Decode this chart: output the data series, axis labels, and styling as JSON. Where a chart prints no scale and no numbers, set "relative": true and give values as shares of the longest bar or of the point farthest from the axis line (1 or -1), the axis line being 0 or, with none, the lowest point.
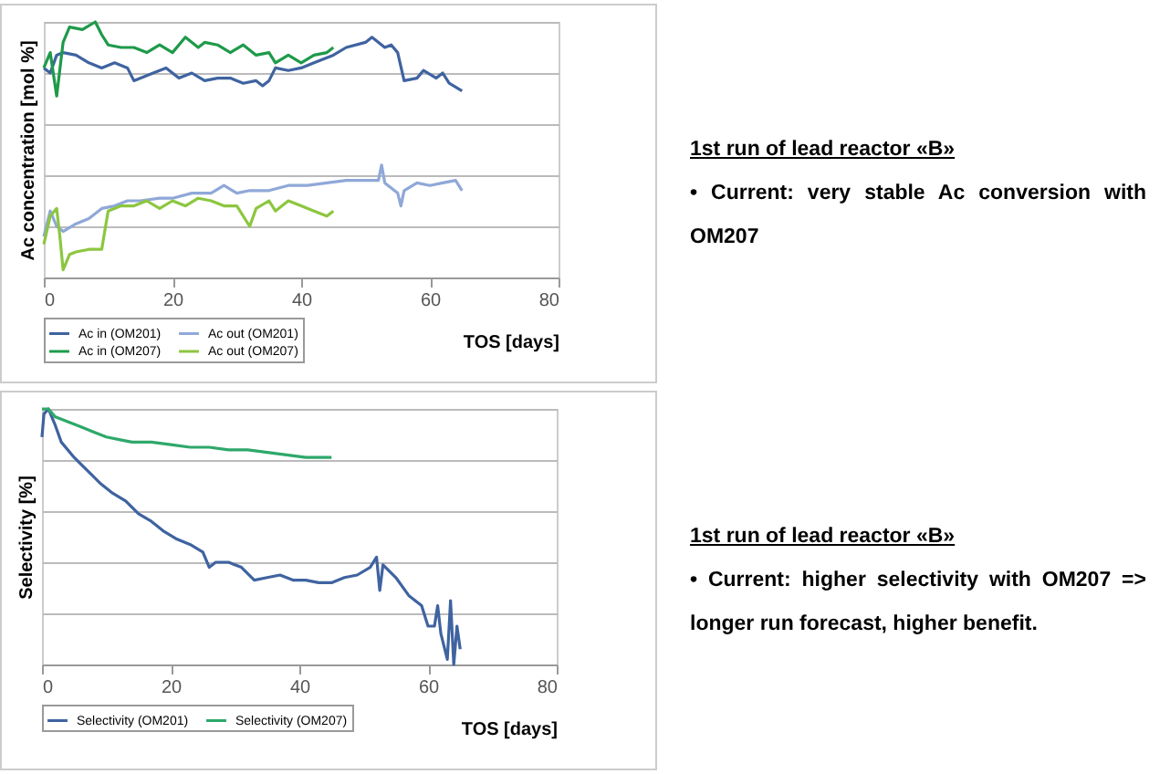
{
  "chart_data": [
    {
      "type": "line",
      "relative": true,
      "xlabel": "TOS [days]",
      "ylabel": "Ac concentration [mol %]",
      "xlim": [
        0,
        80
      ],
      "xticks": [
        0,
        20,
        40,
        60,
        80
      ],
      "grid": "y",
      "legend": "bottom",
      "annotations": [
        "1st run of lead reactor «B»",
        "• Current: very stable Ac conversion with OM207"
      ],
      "series": [
        {
          "name": "Ac in (OM201)",
          "color": "#3f63a0",
          "x": [
            0,
            1,
            2,
            3,
            5,
            7,
            9,
            11,
            13,
            14,
            17,
            19,
            21,
            23,
            25,
            27,
            29,
            31,
            33,
            34,
            35,
            36,
            38,
            40,
            42,
            45,
            47,
            50,
            51,
            53,
            54,
            55,
            56,
            58,
            59,
            61,
            62,
            63,
            65
          ],
          "values": [
            0.82,
            0.8,
            0.87,
            0.88,
            0.87,
            0.84,
            0.82,
            0.84,
            0.82,
            0.77,
            0.8,
            0.82,
            0.78,
            0.8,
            0.77,
            0.78,
            0.78,
            0.76,
            0.77,
            0.75,
            0.77,
            0.82,
            0.81,
            0.82,
            0.84,
            0.87,
            0.9,
            0.92,
            0.94,
            0.9,
            0.91,
            0.88,
            0.77,
            0.78,
            0.81,
            0.78,
            0.8,
            0.76,
            0.73
          ]
        },
        {
          "name": "Ac in (OM207)",
          "color": "#1e9a4a",
          "x": [
            0,
            1,
            2,
            3,
            4,
            6,
            8,
            9,
            10,
            12,
            14,
            16,
            18,
            20,
            22,
            24,
            25,
            27,
            29,
            31,
            33,
            35,
            36,
            38,
            40,
            42,
            44,
            45
          ],
          "values": [
            0.82,
            0.88,
            0.71,
            0.92,
            0.98,
            0.97,
            1.0,
            0.95,
            0.91,
            0.9,
            0.9,
            0.88,
            0.91,
            0.88,
            0.94,
            0.9,
            0.92,
            0.91,
            0.88,
            0.91,
            0.87,
            0.88,
            0.84,
            0.87,
            0.84,
            0.87,
            0.88,
            0.9
          ]
        },
        {
          "name": "Ac out (OM201)",
          "color": "#8fa8d8",
          "x": [
            0,
            1,
            2,
            3,
            5,
            7,
            9,
            11,
            13,
            15,
            18,
            20,
            23,
            26,
            28,
            30,
            32,
            35,
            38,
            41,
            44,
            47,
            50,
            52,
            52.5,
            53,
            55,
            55.5,
            56,
            58,
            60,
            62,
            64,
            65
          ],
          "values": [
            0.16,
            0.26,
            0.2,
            0.18,
            0.21,
            0.23,
            0.27,
            0.28,
            0.3,
            0.3,
            0.31,
            0.31,
            0.33,
            0.33,
            0.36,
            0.33,
            0.34,
            0.34,
            0.36,
            0.36,
            0.37,
            0.38,
            0.38,
            0.38,
            0.44,
            0.37,
            0.33,
            0.28,
            0.34,
            0.37,
            0.36,
            0.37,
            0.38,
            0.34
          ]
        },
        {
          "name": "Ac out (OM207)",
          "color": "#8cc63f",
          "x": [
            0,
            1,
            2,
            2.5,
            3,
            4,
            5,
            7,
            9,
            10,
            12,
            14,
            16,
            18,
            20,
            22,
            24,
            26,
            28,
            30,
            32,
            33,
            35,
            36,
            38,
            40,
            42,
            44,
            45
          ],
          "values": [
            0.13,
            0.24,
            0.27,
            0.16,
            0.03,
            0.09,
            0.1,
            0.11,
            0.11,
            0.26,
            0.28,
            0.28,
            0.3,
            0.27,
            0.3,
            0.28,
            0.31,
            0.3,
            0.28,
            0.28,
            0.2,
            0.27,
            0.3,
            0.26,
            0.3,
            0.28,
            0.26,
            0.24,
            0.26
          ]
        }
      ]
    },
    {
      "type": "line",
      "relative": true,
      "xlabel": "TOS [days]",
      "ylabel": "Selectivity [%]",
      "xlim": [
        0,
        80
      ],
      "xticks": [
        0,
        20,
        40,
        60,
        80
      ],
      "grid": "y",
      "legend": "bottom",
      "annotations": [
        "1st run of lead reactor «B»",
        "• Current: higher selectivity with OM207 => longer run forecast, higher benefit."
      ],
      "series": [
        {
          "name": "Selectivity (OM201)",
          "color": "#3f63a0",
          "x": [
            0,
            0.3,
            1,
            2,
            3,
            5,
            7,
            9,
            11,
            13,
            15,
            17,
            19,
            21,
            23,
            25,
            26,
            27,
            29,
            31,
            33,
            35,
            37,
            39,
            41,
            43,
            45,
            47,
            49,
            51,
            52,
            52.5,
            53,
            55,
            57,
            59,
            60,
            61,
            61.5,
            62,
            63,
            63.5,
            64,
            64.5,
            65
          ],
          "values": [
            0.89,
            0.98,
            1.0,
            0.94,
            0.87,
            0.81,
            0.76,
            0.71,
            0.67,
            0.64,
            0.59,
            0.56,
            0.52,
            0.49,
            0.47,
            0.44,
            0.38,
            0.4,
            0.4,
            0.38,
            0.33,
            0.34,
            0.35,
            0.33,
            0.33,
            0.32,
            0.32,
            0.34,
            0.35,
            0.38,
            0.42,
            0.29,
            0.39,
            0.34,
            0.27,
            0.23,
            0.15,
            0.15,
            0.23,
            0.12,
            0.02,
            0.25,
            0.0,
            0.15,
            0.06
          ]
        },
        {
          "name": "Selectivity (OM207)",
          "color": "#2ea86a",
          "x": [
            0,
            1,
            2,
            4,
            6,
            8,
            10,
            12,
            14,
            17,
            20,
            23,
            26,
            29,
            32,
            35,
            38,
            41,
            43,
            45
          ],
          "values": [
            1.0,
            1.0,
            0.97,
            0.95,
            0.93,
            0.91,
            0.89,
            0.88,
            0.87,
            0.87,
            0.86,
            0.85,
            0.85,
            0.84,
            0.84,
            0.83,
            0.82,
            0.81,
            0.81,
            0.81
          ]
        }
      ]
    }
  ]
}
